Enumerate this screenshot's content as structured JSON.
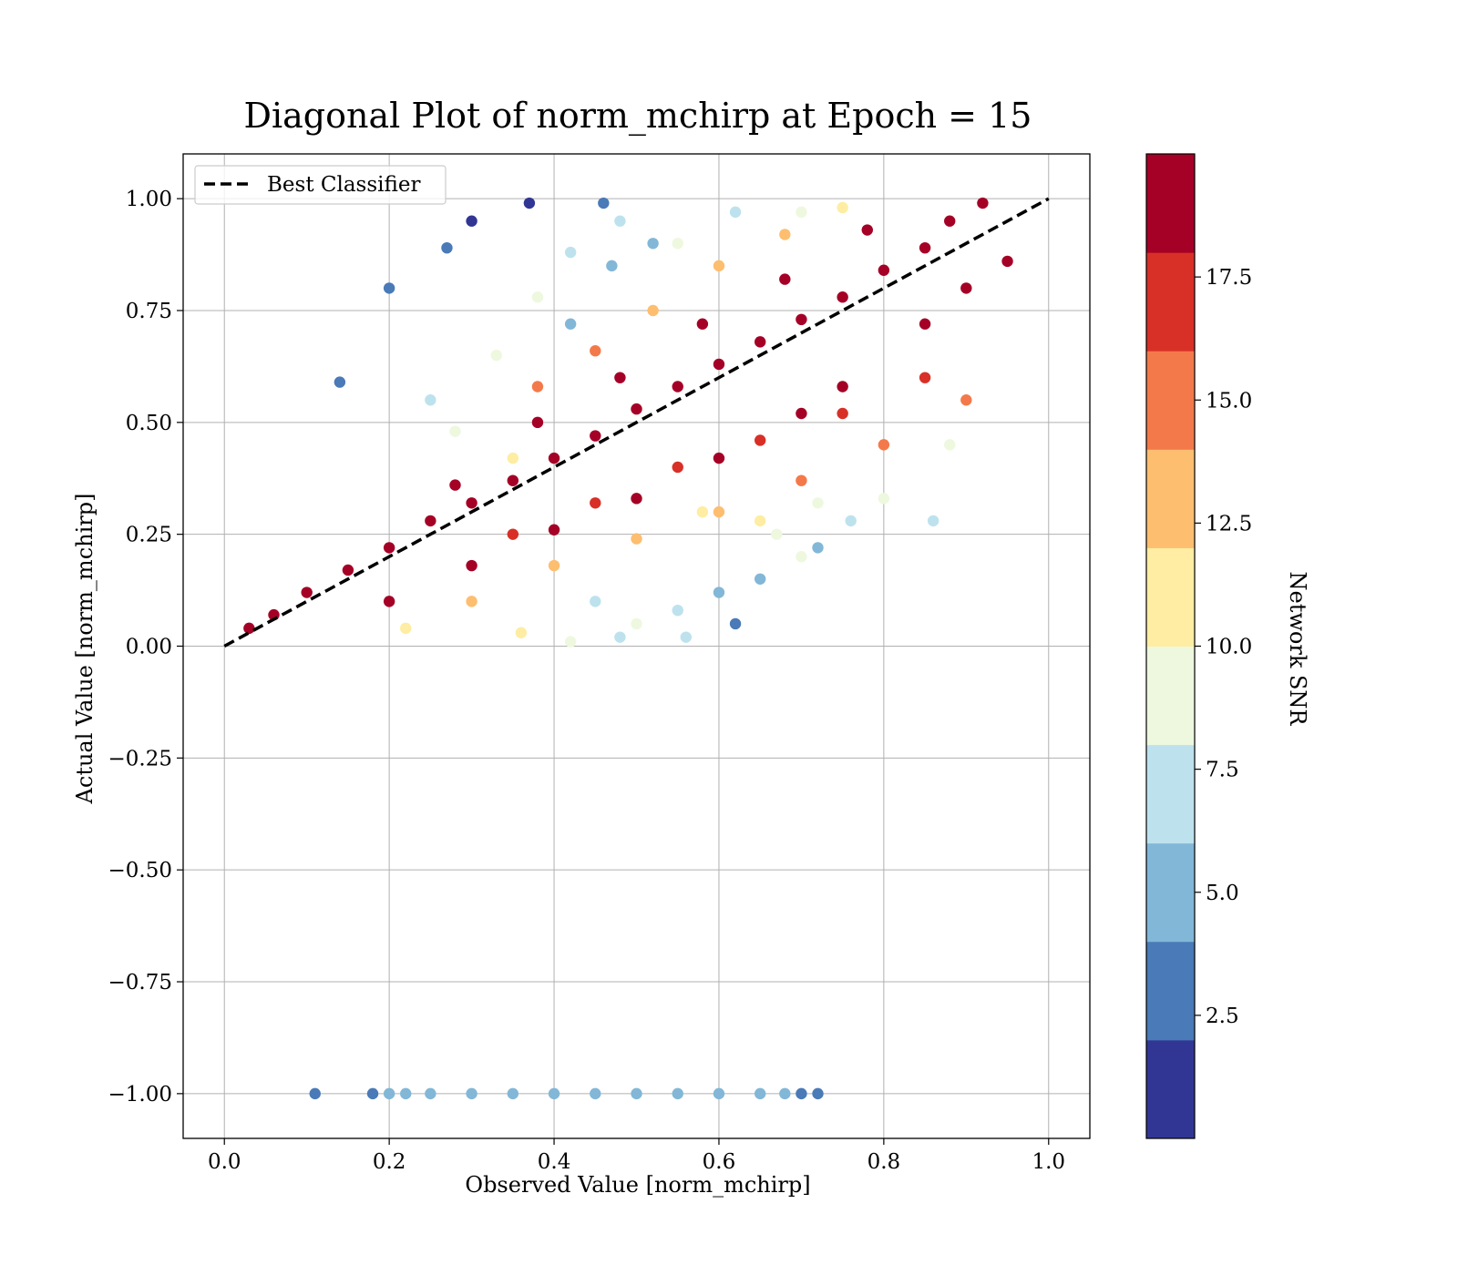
{
  "chart_data": {
    "type": "scatter",
    "title": "Diagonal Plot of norm_mchirp at Epoch = 15",
    "xlabel": "Observed Value [norm_mchirp]",
    "ylabel": "Actual Value [norm_mchirp]",
    "xlim": [
      -0.05,
      1.05
    ],
    "ylim": [
      -1.1,
      1.1
    ],
    "xticks": [
      0.0,
      0.2,
      0.4,
      0.6,
      0.8,
      1.0
    ],
    "xtick_labels": [
      "0.0",
      "0.2",
      "0.4",
      "0.6",
      "0.8",
      "1.0"
    ],
    "yticks": [
      1.0,
      0.75,
      0.5,
      0.25,
      0.0,
      -0.25,
      -0.5,
      -0.75,
      -1.0
    ],
    "ytick_labels": [
      "1.00",
      "0.75",
      "0.50",
      "0.25",
      "0.00",
      "−0.25",
      "−0.50",
      "−0.75",
      "−1.00"
    ],
    "grid": true,
    "legend": {
      "position": "top-left",
      "entries": [
        {
          "label": "Best Classifier",
          "style": "black dashed line"
        }
      ]
    },
    "reference_line": {
      "label": "Best Classifier",
      "x": [
        0.0,
        1.0
      ],
      "y": [
        0.0,
        1.0
      ],
      "color": "#000000",
      "dash": true
    },
    "colorbar": {
      "label": "Network SNR",
      "range": [
        0,
        20
      ],
      "ticks": [
        2.5,
        5.0,
        7.5,
        10.0,
        12.5,
        15.0,
        17.5
      ],
      "tick_labels": [
        "2.5",
        "5.0",
        "7.5",
        "10.0",
        "12.5",
        "15.0",
        "17.5"
      ],
      "colors": [
        "#313695",
        "#4a7ab7",
        "#82b7d7",
        "#bde2ee",
        "#eef8df",
        "#feeda2",
        "#fdbe70",
        "#f4794a",
        "#d83027",
        "#a50026"
      ]
    },
    "series": [
      {
        "description_points": "dense scatter band",
        "points": [
          [
            0.03,
            0.04,
            19
          ],
          [
            0.06,
            0.07,
            19
          ],
          [
            0.1,
            0.12,
            19
          ],
          [
            0.15,
            0.17,
            19
          ],
          [
            0.2,
            0.22,
            19
          ],
          [
            0.25,
            0.28,
            19
          ],
          [
            0.3,
            0.32,
            19
          ],
          [
            0.35,
            0.37,
            19
          ],
          [
            0.4,
            0.42,
            19
          ],
          [
            0.45,
            0.47,
            19
          ],
          [
            0.5,
            0.53,
            19
          ],
          [
            0.55,
            0.58,
            19
          ],
          [
            0.6,
            0.63,
            19
          ],
          [
            0.65,
            0.68,
            19
          ],
          [
            0.7,
            0.73,
            19
          ],
          [
            0.75,
            0.78,
            19
          ],
          [
            0.8,
            0.84,
            19
          ],
          [
            0.85,
            0.89,
            19
          ],
          [
            0.88,
            0.95,
            19
          ],
          [
            0.92,
            0.99,
            19
          ],
          [
            0.95,
            0.86,
            19
          ],
          [
            0.9,
            0.8,
            19
          ],
          [
            0.85,
            0.72,
            19
          ],
          [
            0.75,
            0.58,
            19
          ],
          [
            0.7,
            0.52,
            19
          ],
          [
            0.6,
            0.42,
            19
          ],
          [
            0.5,
            0.33,
            19
          ],
          [
            0.4,
            0.26,
            19
          ],
          [
            0.3,
            0.18,
            19
          ],
          [
            0.2,
            0.1,
            19
          ],
          [
            0.28,
            0.36,
            19
          ],
          [
            0.38,
            0.5,
            19
          ],
          [
            0.48,
            0.6,
            19
          ],
          [
            0.58,
            0.72,
            19
          ],
          [
            0.68,
            0.82,
            19
          ],
          [
            0.78,
            0.93,
            19
          ],
          [
            0.35,
            0.25,
            16
          ],
          [
            0.45,
            0.32,
            16
          ],
          [
            0.55,
            0.4,
            16
          ],
          [
            0.65,
            0.46,
            16
          ],
          [
            0.75,
            0.52,
            16
          ],
          [
            0.85,
            0.6,
            16
          ],
          [
            0.9,
            0.55,
            15
          ],
          [
            0.8,
            0.45,
            14
          ],
          [
            0.7,
            0.37,
            14
          ],
          [
            0.6,
            0.3,
            13
          ],
          [
            0.5,
            0.24,
            13
          ],
          [
            0.4,
            0.18,
            12
          ],
          [
            0.3,
            0.1,
            12
          ],
          [
            0.22,
            0.04,
            11
          ],
          [
            0.38,
            0.58,
            15
          ],
          [
            0.45,
            0.66,
            14
          ],
          [
            0.52,
            0.75,
            13
          ],
          [
            0.6,
            0.85,
            13
          ],
          [
            0.68,
            0.92,
            12
          ],
          [
            0.58,
            0.3,
            11
          ],
          [
            0.65,
            0.28,
            10
          ],
          [
            0.72,
            0.32,
            9
          ],
          [
            0.8,
            0.33,
            8
          ],
          [
            0.88,
            0.45,
            9
          ],
          [
            0.33,
            0.65,
            9
          ],
          [
            0.38,
            0.78,
            8
          ],
          [
            0.42,
            0.88,
            7
          ],
          [
            0.48,
            0.95,
            6
          ],
          [
            0.55,
            0.9,
            8
          ],
          [
            0.62,
            0.97,
            7
          ],
          [
            0.7,
            0.97,
            9
          ],
          [
            0.75,
            0.98,
            10
          ],
          [
            0.35,
            0.42,
            11
          ],
          [
            0.28,
            0.48,
            8
          ],
          [
            0.25,
            0.55,
            6
          ],
          [
            0.2,
            0.8,
            3
          ],
          [
            0.14,
            0.59,
            3
          ],
          [
            0.3,
            0.95,
            1
          ],
          [
            0.37,
            0.99,
            1
          ],
          [
            0.27,
            0.89,
            2
          ],
          [
            0.46,
            0.99,
            2
          ],
          [
            0.52,
            0.9,
            5
          ],
          [
            0.47,
            0.85,
            5
          ],
          [
            0.42,
            0.72,
            4
          ],
          [
            0.45,
            0.1,
            7
          ],
          [
            0.5,
            0.05,
            8
          ],
          [
            0.55,
            0.08,
            6
          ],
          [
            0.6,
            0.12,
            5
          ],
          [
            0.65,
            0.15,
            4
          ],
          [
            0.48,
            0.02,
            7
          ],
          [
            0.42,
            0.01,
            8
          ],
          [
            0.36,
            0.03,
            10
          ],
          [
            0.56,
            0.02,
            6
          ],
          [
            0.62,
            0.05,
            3
          ],
          [
            0.72,
            0.22,
            5
          ],
          [
            0.7,
            0.2,
            8
          ],
          [
            0.67,
            0.25,
            9
          ],
          [
            0.76,
            0.28,
            7
          ],
          [
            0.86,
            0.28,
            6
          ]
        ]
      },
      {
        "description_points": "row at -1.00",
        "points": [
          [
            0.11,
            -1.0,
            3
          ],
          [
            0.18,
            -1.0,
            3
          ],
          [
            0.2,
            -1.0,
            4
          ],
          [
            0.22,
            -1.0,
            5
          ],
          [
            0.25,
            -1.0,
            5
          ],
          [
            0.3,
            -1.0,
            5
          ],
          [
            0.35,
            -1.0,
            5
          ],
          [
            0.4,
            -1.0,
            5
          ],
          [
            0.45,
            -1.0,
            5
          ],
          [
            0.5,
            -1.0,
            5
          ],
          [
            0.55,
            -1.0,
            5
          ],
          [
            0.6,
            -1.0,
            5
          ],
          [
            0.65,
            -1.0,
            5
          ],
          [
            0.68,
            -1.0,
            4
          ],
          [
            0.7,
            -1.0,
            3
          ],
          [
            0.72,
            -1.0,
            2
          ]
        ]
      }
    ]
  }
}
